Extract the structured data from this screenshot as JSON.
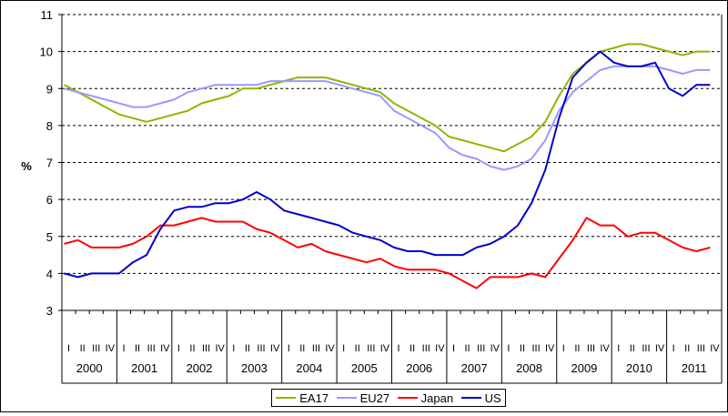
{
  "chart_data": {
    "type": "line",
    "ylabel": "%",
    "ylim": [
      3,
      11
    ],
    "yticks": [
      "3",
      "4",
      "5",
      "6",
      "7",
      "8",
      "9",
      "10",
      "11"
    ],
    "grid": true,
    "legend_position": "bottom",
    "quarter_labels": [
      "I",
      "II",
      "III",
      "IV"
    ],
    "years": [
      "2000",
      "2001",
      "2002",
      "2003",
      "2004",
      "2005",
      "2006",
      "2007",
      "2008",
      "2009",
      "2010",
      "2011"
    ],
    "x_start": "2000-01",
    "x_end": "2011-12",
    "series": [
      {
        "name": "EA17",
        "color": "#8DB600",
        "points": [
          [
            "2000-01",
            9.1
          ],
          [
            "2000-04",
            8.9
          ],
          [
            "2000-07",
            8.7
          ],
          [
            "2000-10",
            8.5
          ],
          [
            "2001-01",
            8.3
          ],
          [
            "2001-04",
            8.2
          ],
          [
            "2001-07",
            8.1
          ],
          [
            "2001-10",
            8.2
          ],
          [
            "2002-01",
            8.3
          ],
          [
            "2002-04",
            8.4
          ],
          [
            "2002-07",
            8.6
          ],
          [
            "2002-10",
            8.7
          ],
          [
            "2003-01",
            8.8
          ],
          [
            "2003-04",
            9.0
          ],
          [
            "2003-07",
            9.0
          ],
          [
            "2003-10",
            9.1
          ],
          [
            "2004-01",
            9.2
          ],
          [
            "2004-04",
            9.3
          ],
          [
            "2004-07",
            9.3
          ],
          [
            "2004-10",
            9.3
          ],
          [
            "2005-01",
            9.2
          ],
          [
            "2005-04",
            9.1
          ],
          [
            "2005-07",
            9.0
          ],
          [
            "2005-10",
            8.9
          ],
          [
            "2006-01",
            8.6
          ],
          [
            "2006-04",
            8.4
          ],
          [
            "2006-07",
            8.2
          ],
          [
            "2006-10",
            8.0
          ],
          [
            "2007-01",
            7.7
          ],
          [
            "2007-04",
            7.6
          ],
          [
            "2007-07",
            7.5
          ],
          [
            "2007-10",
            7.4
          ],
          [
            "2008-01",
            7.3
          ],
          [
            "2008-04",
            7.5
          ],
          [
            "2008-07",
            7.7
          ],
          [
            "2008-10",
            8.1
          ],
          [
            "2009-01",
            8.8
          ],
          [
            "2009-04",
            9.4
          ],
          [
            "2009-07",
            9.7
          ],
          [
            "2009-10",
            10.0
          ],
          [
            "2010-01",
            10.1
          ],
          [
            "2010-04",
            10.2
          ],
          [
            "2010-07",
            10.2
          ],
          [
            "2010-10",
            10.1
          ],
          [
            "2011-01",
            10.0
          ],
          [
            "2011-04",
            9.9
          ],
          [
            "2011-07",
            10.0
          ],
          [
            "2011-10",
            10.0
          ]
        ]
      },
      {
        "name": "EU27",
        "color": "#9999FF",
        "points": [
          [
            "2000-01",
            9.0
          ],
          [
            "2000-04",
            8.9
          ],
          [
            "2000-07",
            8.8
          ],
          [
            "2000-10",
            8.7
          ],
          [
            "2001-01",
            8.6
          ],
          [
            "2001-04",
            8.5
          ],
          [
            "2001-07",
            8.5
          ],
          [
            "2001-10",
            8.6
          ],
          [
            "2002-01",
            8.7
          ],
          [
            "2002-04",
            8.9
          ],
          [
            "2002-07",
            9.0
          ],
          [
            "2002-10",
            9.1
          ],
          [
            "2003-01",
            9.1
          ],
          [
            "2003-04",
            9.1
          ],
          [
            "2003-07",
            9.1
          ],
          [
            "2003-10",
            9.2
          ],
          [
            "2004-01",
            9.2
          ],
          [
            "2004-04",
            9.2
          ],
          [
            "2004-07",
            9.2
          ],
          [
            "2004-10",
            9.2
          ],
          [
            "2005-01",
            9.1
          ],
          [
            "2005-04",
            9.0
          ],
          [
            "2005-07",
            8.9
          ],
          [
            "2005-10",
            8.8
          ],
          [
            "2006-01",
            8.4
          ],
          [
            "2006-04",
            8.2
          ],
          [
            "2006-07",
            8.0
          ],
          [
            "2006-10",
            7.8
          ],
          [
            "2007-01",
            7.4
          ],
          [
            "2007-04",
            7.2
          ],
          [
            "2007-07",
            7.1
          ],
          [
            "2007-10",
            6.9
          ],
          [
            "2008-01",
            6.8
          ],
          [
            "2008-04",
            6.9
          ],
          [
            "2008-07",
            7.1
          ],
          [
            "2008-10",
            7.6
          ],
          [
            "2009-01",
            8.4
          ],
          [
            "2009-04",
            8.9
          ],
          [
            "2009-07",
            9.2
          ],
          [
            "2009-10",
            9.5
          ],
          [
            "2010-01",
            9.6
          ],
          [
            "2010-04",
            9.6
          ],
          [
            "2010-07",
            9.6
          ],
          [
            "2010-10",
            9.6
          ],
          [
            "2011-01",
            9.5
          ],
          [
            "2011-04",
            9.4
          ],
          [
            "2011-07",
            9.5
          ],
          [
            "2011-10",
            9.5
          ]
        ]
      },
      {
        "name": "Japan",
        "color": "#FF0000",
        "points": [
          [
            "2000-01",
            4.8
          ],
          [
            "2000-04",
            4.9
          ],
          [
            "2000-07",
            4.7
          ],
          [
            "2000-10",
            4.7
          ],
          [
            "2001-01",
            4.7
          ],
          [
            "2001-04",
            4.8
          ],
          [
            "2001-07",
            5.0
          ],
          [
            "2001-10",
            5.3
          ],
          [
            "2002-01",
            5.3
          ],
          [
            "2002-04",
            5.4
          ],
          [
            "2002-07",
            5.5
          ],
          [
            "2002-10",
            5.4
          ],
          [
            "2003-01",
            5.4
          ],
          [
            "2003-04",
            5.4
          ],
          [
            "2003-07",
            5.2
          ],
          [
            "2003-10",
            5.1
          ],
          [
            "2004-01",
            4.9
          ],
          [
            "2004-04",
            4.7
          ],
          [
            "2004-07",
            4.8
          ],
          [
            "2004-10",
            4.6
          ],
          [
            "2005-01",
            4.5
          ],
          [
            "2005-04",
            4.4
          ],
          [
            "2005-07",
            4.3
          ],
          [
            "2005-10",
            4.4
          ],
          [
            "2006-01",
            4.2
          ],
          [
            "2006-04",
            4.1
          ],
          [
            "2006-07",
            4.1
          ],
          [
            "2006-10",
            4.1
          ],
          [
            "2007-01",
            4.0
          ],
          [
            "2007-04",
            3.8
          ],
          [
            "2007-07",
            3.6
          ],
          [
            "2007-10",
            3.9
          ],
          [
            "2008-01",
            3.9
          ],
          [
            "2008-04",
            3.9
          ],
          [
            "2008-07",
            4.0
          ],
          [
            "2008-10",
            3.9
          ],
          [
            "2009-01",
            4.4
          ],
          [
            "2009-04",
            4.9
          ],
          [
            "2009-07",
            5.5
          ],
          [
            "2009-10",
            5.3
          ],
          [
            "2010-01",
            5.3
          ],
          [
            "2010-04",
            5.0
          ],
          [
            "2010-07",
            5.1
          ],
          [
            "2010-10",
            5.1
          ],
          [
            "2011-01",
            4.9
          ],
          [
            "2011-04",
            4.7
          ],
          [
            "2011-07",
            4.6
          ],
          [
            "2011-10",
            4.7
          ]
        ]
      },
      {
        "name": "US",
        "color": "#0000CC",
        "points": [
          [
            "2000-01",
            4.0
          ],
          [
            "2000-04",
            3.9
          ],
          [
            "2000-07",
            4.0
          ],
          [
            "2000-10",
            4.0
          ],
          [
            "2001-01",
            4.0
          ],
          [
            "2001-04",
            4.3
          ],
          [
            "2001-07",
            4.5
          ],
          [
            "2001-10",
            5.2
          ],
          [
            "2002-01",
            5.7
          ],
          [
            "2002-04",
            5.8
          ],
          [
            "2002-07",
            5.8
          ],
          [
            "2002-10",
            5.9
          ],
          [
            "2003-01",
            5.9
          ],
          [
            "2003-04",
            6.0
          ],
          [
            "2003-07",
            6.2
          ],
          [
            "2003-10",
            6.0
          ],
          [
            "2004-01",
            5.7
          ],
          [
            "2004-04",
            5.6
          ],
          [
            "2004-07",
            5.5
          ],
          [
            "2004-10",
            5.4
          ],
          [
            "2005-01",
            5.3
          ],
          [
            "2005-04",
            5.1
          ],
          [
            "2005-07",
            5.0
          ],
          [
            "2005-10",
            4.9
          ],
          [
            "2006-01",
            4.7
          ],
          [
            "2006-04",
            4.6
          ],
          [
            "2006-07",
            4.6
          ],
          [
            "2006-10",
            4.5
          ],
          [
            "2007-01",
            4.5
          ],
          [
            "2007-04",
            4.5
          ],
          [
            "2007-07",
            4.7
          ],
          [
            "2007-10",
            4.8
          ],
          [
            "2008-01",
            5.0
          ],
          [
            "2008-04",
            5.3
          ],
          [
            "2008-07",
            5.9
          ],
          [
            "2008-10",
            6.8
          ],
          [
            "2009-01",
            8.2
          ],
          [
            "2009-04",
            9.3
          ],
          [
            "2009-07",
            9.7
          ],
          [
            "2009-10",
            10.0
          ],
          [
            "2010-01",
            9.7
          ],
          [
            "2010-04",
            9.6
          ],
          [
            "2010-07",
            9.6
          ],
          [
            "2010-10",
            9.7
          ],
          [
            "2011-01",
            9.0
          ],
          [
            "2011-04",
            8.8
          ],
          [
            "2011-07",
            9.1
          ],
          [
            "2011-10",
            9.1
          ]
        ]
      }
    ]
  }
}
